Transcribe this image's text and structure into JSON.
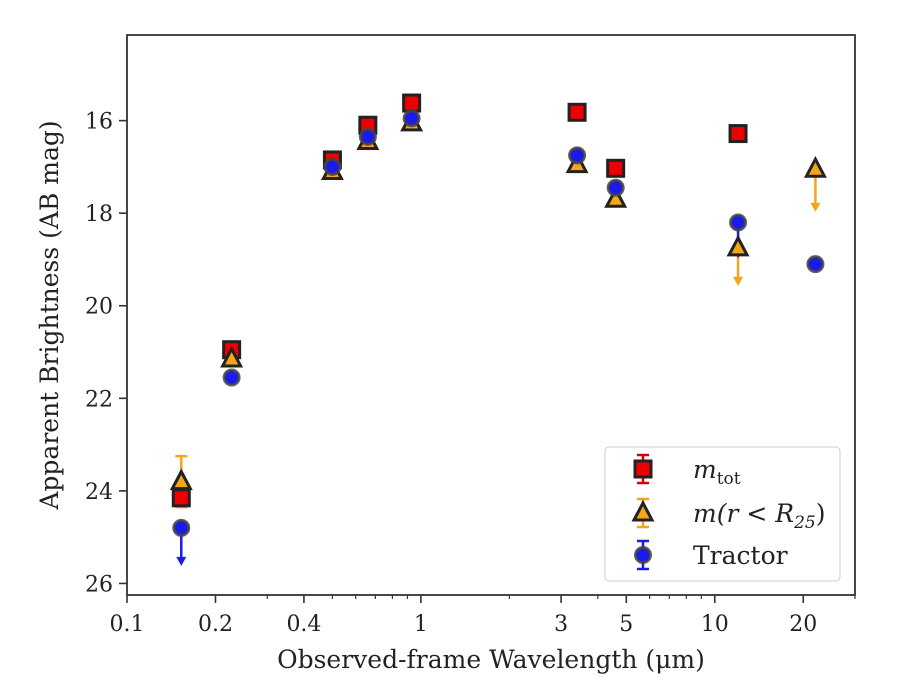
{
  "chart_data": {
    "type": "scatter",
    "title": "",
    "xlabel": "Observed-frame Wavelength (μm)",
    "ylabel": "Apparent Brightness (AB mag)",
    "xscale": "log",
    "xlim": [
      0.1,
      30
    ],
    "ylim": [
      26.25,
      14.15
    ],
    "y_inverted": true,
    "x_ticks": [
      0.1,
      0.2,
      0.4,
      1,
      3,
      5,
      10,
      20
    ],
    "x_tick_labels": [
      "0.1",
      "0.2",
      "0.4",
      "1",
      "3",
      "5",
      "10",
      "20"
    ],
    "y_ticks": [
      16,
      18,
      20,
      22,
      24,
      26
    ],
    "y_tick_labels": [
      "16",
      "18",
      "20",
      "22",
      "24",
      "26"
    ],
    "grid": false,
    "legend": {
      "position": "lower-right",
      "entries": [
        {
          "label_main": "m",
          "label_sub": "tot",
          "marker": "square",
          "fill": "#ee0000",
          "edge": "#222222",
          "errcolor": "#dd0000"
        },
        {
          "label_main": "m(r < R",
          "label_sub": "25",
          "label_tail": ")",
          "marker": "triangle",
          "fill": "#f5a51a",
          "edge": "#222222",
          "errcolor": "#f5a51a"
        },
        {
          "label_main": "Tractor",
          "marker": "circle",
          "fill": "#1a1aee",
          "edge": "#444444",
          "errcolor": "#1a1aee"
        }
      ]
    },
    "series": [
      {
        "name": "m_tot",
        "marker": "square",
        "fill": "#ee0000",
        "edge": "#222222",
        "points": [
          {
            "x": 0.153,
            "y": 24.15,
            "yerr": 0.15
          },
          {
            "x": 0.227,
            "y": 20.95
          },
          {
            "x": 0.5,
            "y": 16.85
          },
          {
            "x": 0.66,
            "y": 16.1
          },
          {
            "x": 0.93,
            "y": 15.62
          },
          {
            "x": 3.4,
            "y": 15.82
          },
          {
            "x": 4.6,
            "y": 17.03
          },
          {
            "x": 12.0,
            "y": 16.28
          }
        ]
      },
      {
        "name": "m(r<R25)",
        "marker": "triangle",
        "fill": "#f5a51a",
        "edge": "#222222",
        "points": [
          {
            "x": 0.153,
            "y": 23.8,
            "yerr": 0.55
          },
          {
            "x": 0.227,
            "y": 21.15
          },
          {
            "x": 0.5,
            "y": 17.1
          },
          {
            "x": 0.66,
            "y": 16.45
          },
          {
            "x": 0.93,
            "y": 16.05
          },
          {
            "x": 3.4,
            "y": 16.95
          },
          {
            "x": 4.6,
            "y": 17.7
          },
          {
            "x": 12.0,
            "y": 18.75,
            "limit_to": 19.55
          },
          {
            "x": 22.0,
            "y": 17.05,
            "limit_to": 17.95
          }
        ]
      },
      {
        "name": "Tractor",
        "marker": "circle",
        "fill": "#1a1aee",
        "edge": "#444444",
        "points": [
          {
            "x": 0.153,
            "y": 24.8,
            "limit_to": 25.6
          },
          {
            "x": 0.227,
            "y": 21.55
          },
          {
            "x": 0.5,
            "y": 17.0
          },
          {
            "x": 0.66,
            "y": 16.35
          },
          {
            "x": 0.93,
            "y": 15.95
          },
          {
            "x": 3.4,
            "y": 16.75
          },
          {
            "x": 4.6,
            "y": 17.45
          },
          {
            "x": 12.0,
            "y": 18.2,
            "limit_to": 18.95
          },
          {
            "x": 22.0,
            "y": 19.1
          }
        ]
      }
    ]
  }
}
